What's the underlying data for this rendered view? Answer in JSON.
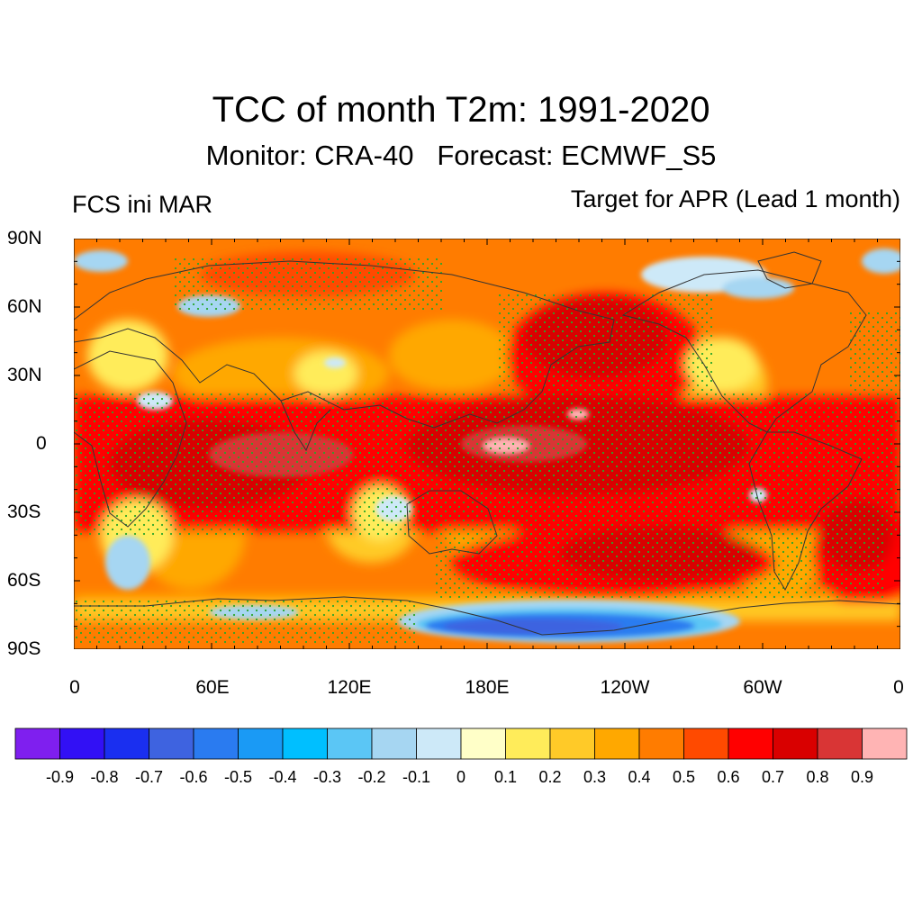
{
  "title": "TCC of month T2m: 1991-2020",
  "subtitle": "Monitor: CRA-40   Forecast: ECMWF_S5",
  "left_label": "FCS ini MAR",
  "right_label": "Target for APR (Lead 1 month)",
  "lat_labels": [
    "90N",
    "60N",
    "30N",
    "0",
    "30S",
    "60S",
    "90S"
  ],
  "lon_labels": [
    "0",
    "60E",
    "120E",
    "180E",
    "120W",
    "60W",
    "0"
  ],
  "colorbar": {
    "labels": [
      "-0.9",
      "-0.8",
      "-0.7",
      "-0.6",
      "-0.5",
      "-0.4",
      "-0.3",
      "-0.2",
      "-0.1",
      "0",
      "0.1",
      "0.2",
      "0.3",
      "0.4",
      "0.5",
      "0.6",
      "0.7",
      "0.8",
      "0.9"
    ],
    "colors": [
      "#7f1fef",
      "#3210f5",
      "#1a2ff0",
      "#3e63e0",
      "#2a7bf0",
      "#1a9af5",
      "#00bfff",
      "#5bc6f5",
      "#a6d6f2",
      "#cde9f8",
      "#ffffc8",
      "#ffec5a",
      "#ffca28",
      "#ffa800",
      "#ff7c00",
      "#ff4a00",
      "#ff0000",
      "#d90000",
      "#d93535",
      "#ffb4b4"
    ]
  },
  "chart_data": {
    "type": "heatmap",
    "title": "TCC of month T2m: 1991-2020",
    "subtitle": "Monitor: CRA-40   Forecast: ECMWF_S5",
    "variable": "TCC (temporal correlation coefficient) of monthly T2m",
    "init": "FCS ini MAR",
    "target": "Target for APR (Lead 1 month)",
    "x_range": [
      0,
      360
    ],
    "y_range": [
      -90,
      90
    ],
    "x_ticks": [
      "0",
      "60E",
      "120E",
      "180E",
      "120W",
      "60W",
      "0"
    ],
    "y_ticks": [
      "90N",
      "60N",
      "30N",
      "0",
      "30S",
      "60S",
      "90S"
    ],
    "levels": [
      -0.9,
      -0.8,
      -0.7,
      -0.6,
      -0.5,
      -0.4,
      -0.3,
      -0.2,
      -0.1,
      0,
      0.1,
      0.2,
      0.3,
      0.4,
      0.5,
      0.6,
      0.7,
      0.8,
      0.9
    ],
    "significance": "green dot stippling over high-TCC areas"
  }
}
